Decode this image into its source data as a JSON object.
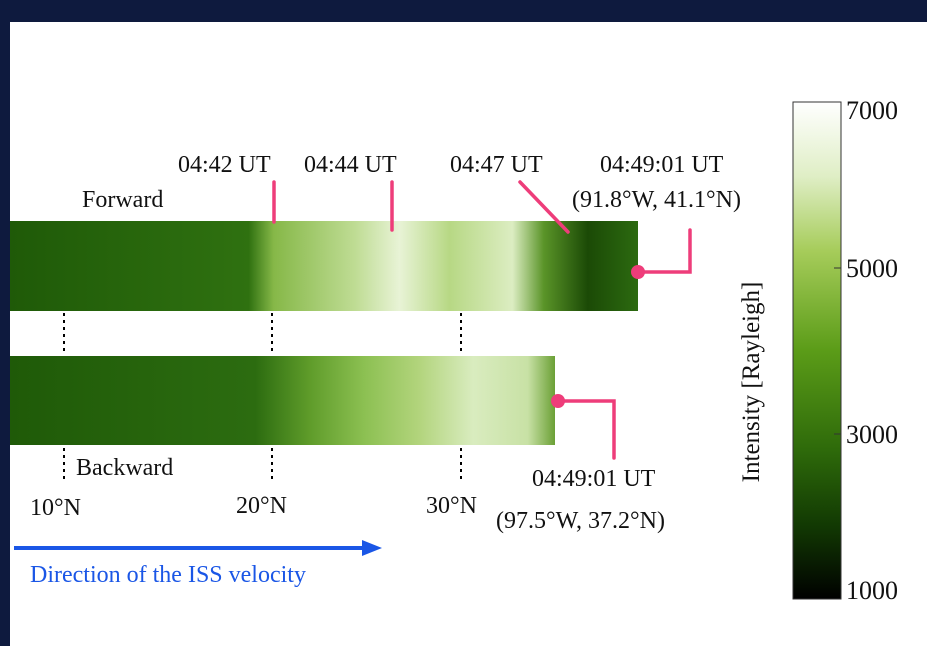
{
  "forward": {
    "label": "Forward",
    "times": [
      "04:42 UT",
      "04:44 UT",
      "04:47 UT",
      "04:49:01 UT"
    ],
    "end_coord": "(91.8°W, 41.1°N)"
  },
  "backward": {
    "label": "Backward",
    "end_time": "04:49:01 UT",
    "end_coord": "(97.5°W, 37.2°N)"
  },
  "latitudes": [
    "10°N",
    "20°N",
    "30°N"
  ],
  "direction_label": "Direction of the ISS velocity",
  "colorbar": {
    "label": "Intensity [Rayleigh]",
    "ticks": [
      "7000",
      "5000",
      "3000",
      "1000"
    ],
    "min": 1000,
    "max": 7000
  },
  "colors": {
    "frame": "#0e1a3e",
    "marker": "#ee3d7a",
    "arrow": "#1a56e6",
    "dark_green": "#1f5a08",
    "bright_green": "#dff0c2"
  }
}
